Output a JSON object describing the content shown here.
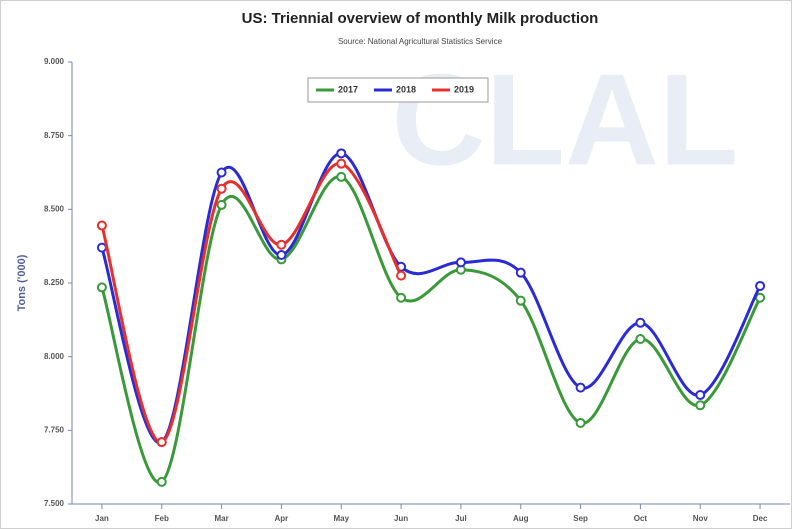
{
  "chart_data": {
    "type": "line",
    "title": "US: Triennial overview of monthly Milk production",
    "subtitle": "Source: National Agricultural Statistics Service",
    "y_label": "Tons ('000)",
    "watermark": "CLAL",
    "categories": [
      "Jan",
      "Feb",
      "Mar",
      "Apr",
      "May",
      "Jun",
      "Jul",
      "Aug",
      "Sep",
      "Oct",
      "Nov",
      "Dec"
    ],
    "series": [
      {
        "name": "2017",
        "color": "#3a9a3a",
        "values": [
          8235,
          7575,
          8515,
          8330,
          8610,
          8200,
          8295,
          8190,
          7775,
          8060,
          7835,
          8200
        ]
      },
      {
        "name": "2018",
        "color": "#2b2bd6",
        "values": [
          8370,
          7710,
          8625,
          8345,
          8690,
          8305,
          8320,
          8285,
          7895,
          8115,
          7870,
          8240
        ]
      },
      {
        "name": "2019",
        "color": "#e8302a",
        "values": [
          8445,
          7710,
          8570,
          8380,
          8655,
          8275,
          null,
          null,
          null,
          null,
          null,
          null
        ]
      }
    ],
    "ylim": [
      7500,
      9000
    ],
    "yticks": [
      {
        "value": 7500,
        "label": "7.500"
      },
      {
        "value": 7750,
        "label": "7.750"
      },
      {
        "value": 8000,
        "label": "8.000"
      },
      {
        "value": 8250,
        "label": "8.250"
      },
      {
        "value": 8500,
        "label": "8.500"
      },
      {
        "value": 8750,
        "label": "8.750"
      },
      {
        "value": 9000,
        "label": "9.000"
      }
    ],
    "grid": false,
    "legend": "top"
  }
}
